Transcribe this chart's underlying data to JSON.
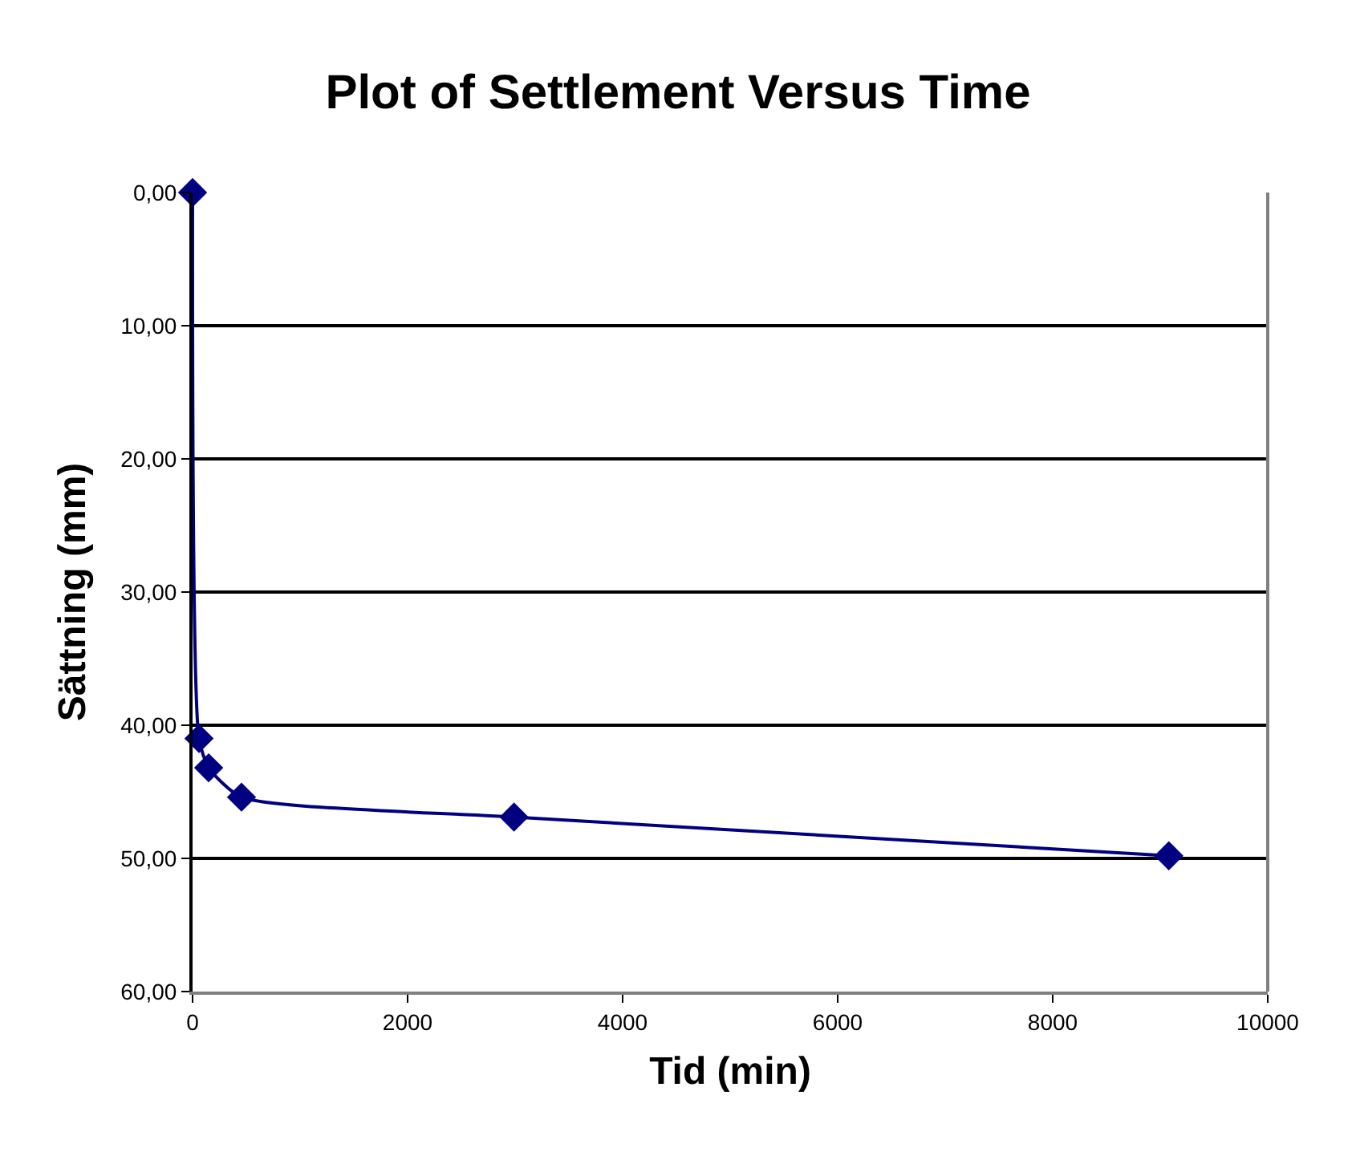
{
  "chart_data": {
    "type": "line",
    "title": "Plot of Settlement Versus Time",
    "xlabel": "Tid (min)",
    "ylabel": "Sättning (mm)",
    "x": [
      0,
      60,
      150,
      455,
      2990,
      9080
    ],
    "series": [
      {
        "color": "#000080",
        "values": [
          0,
          41.0,
          43.2,
          45.4,
          46.9,
          49.8
        ]
      }
    ],
    "xlim": [
      0,
      10000
    ],
    "xticks": [
      0,
      2000,
      4000,
      6000,
      8000,
      10000
    ],
    "ylim": [
      60,
      0
    ],
    "yticks": [
      {
        "value": 0,
        "label": "0,00"
      },
      {
        "value": 10,
        "label": "10,00"
      },
      {
        "value": 20,
        "label": "20,00"
      },
      {
        "value": 30,
        "label": "30,00"
      },
      {
        "value": 40,
        "label": "40,00"
      },
      {
        "value": 50,
        "label": "50,00"
      },
      {
        "value": 60,
        "label": "60,00"
      }
    ],
    "grid": "y",
    "marker": "diamond",
    "line_style": "solid"
  }
}
